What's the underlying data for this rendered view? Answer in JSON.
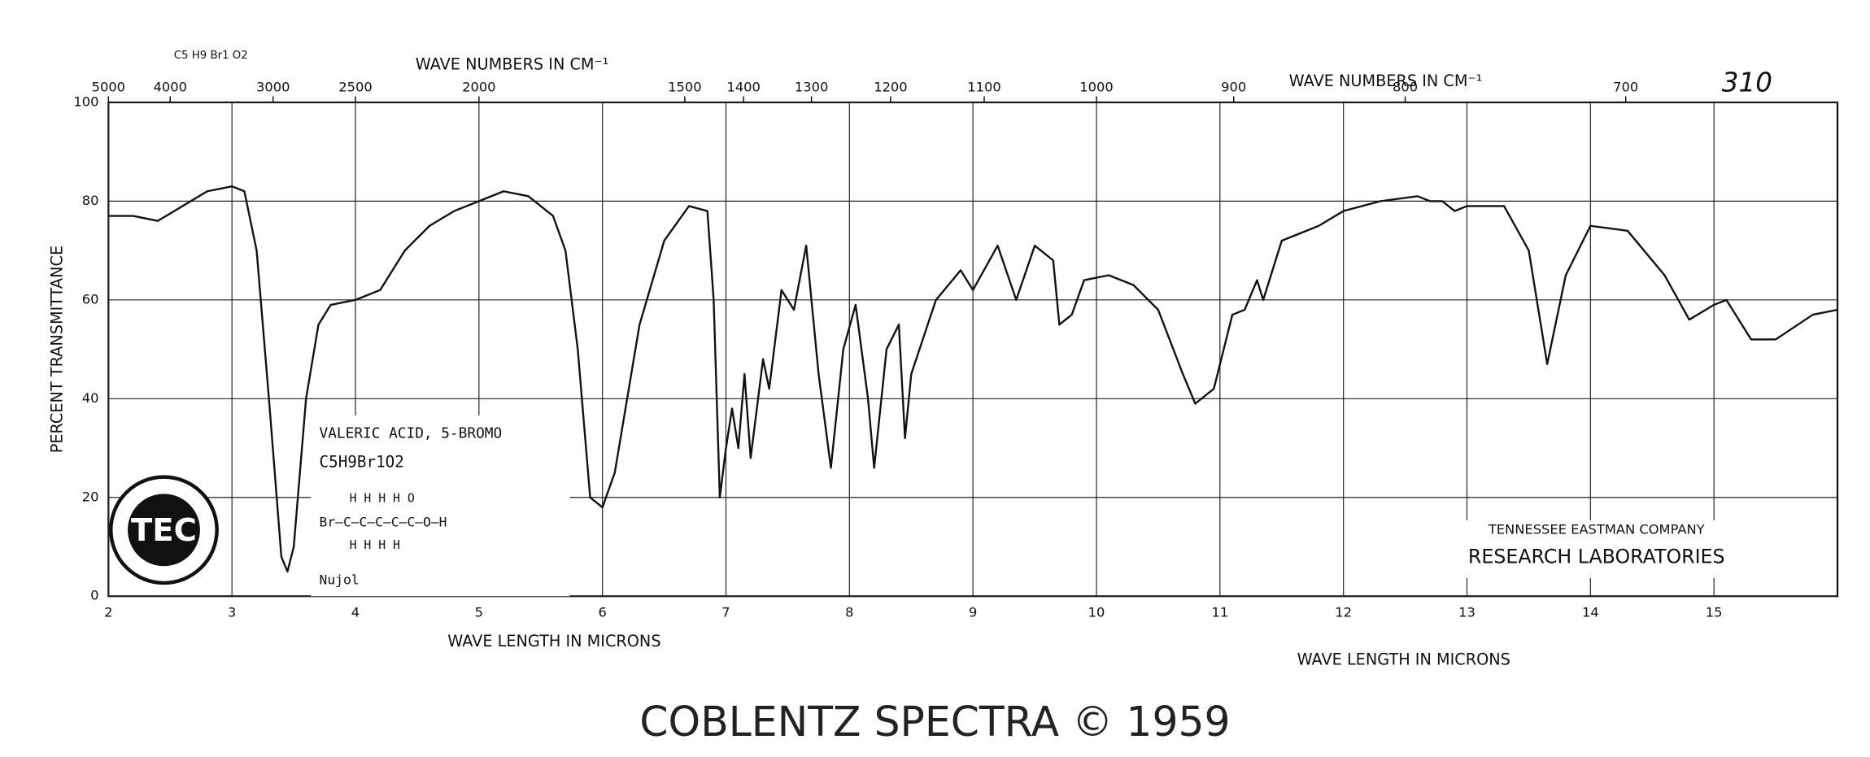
{
  "chart_data": {
    "type": "line",
    "sheet_number": "310",
    "top_formula": "C5 H9 Br1 O2",
    "top_axis_label_left": "WAVE NUMBERS IN CM⁻¹",
    "top_axis_label_right": "WAVE NUMBERS IN CM⁻¹",
    "x_label_left": "WAVE LENGTH IN MICRONS",
    "x_label_right": "WAVE LENGTH IN MICRONS",
    "y_label": "PERCENT TRANSMITTANCE",
    "compound": {
      "name": "VALERIC ACID, 5-BROMO",
      "formula": "C5H9Br1O2",
      "structure": [
        "H   H   H   H   O",
        "Br—C—C—C—C—C—O—H",
        "H   H   H   H"
      ],
      "medium": "Nujol"
    },
    "company": "TENNESSEE EASTMAN COMPANY",
    "lab": "RESEARCH LABORATORIES",
    "logo": "TEC",
    "footer": "COBLENTZ SPECTRA © 1959",
    "color": "#111111",
    "grid": true,
    "xlim": [
      2,
      16
    ],
    "ylim": [
      0,
      100
    ],
    "xticks": [
      2,
      3,
      4,
      5,
      6,
      7,
      8,
      9,
      10,
      11,
      12,
      13,
      14,
      15
    ],
    "yticks": [
      0,
      20,
      40,
      60,
      80,
      100
    ],
    "x2ticks": [
      5000,
      4000,
      3000,
      2500,
      2000,
      1500,
      1400,
      1300,
      1200,
      1100,
      1000,
      900,
      800,
      700
    ],
    "x": [
      2.0,
      2.2,
      2.4,
      2.6,
      2.8,
      3.0,
      3.1,
      3.2,
      3.3,
      3.4,
      3.45,
      3.5,
      3.6,
      3.7,
      3.8,
      4.0,
      4.2,
      4.4,
      4.6,
      4.8,
      5.0,
      5.2,
      5.4,
      5.6,
      5.7,
      5.8,
      5.9,
      6.0,
      6.1,
      6.3,
      6.5,
      6.7,
      6.85,
      6.9,
      6.95,
      7.0,
      7.05,
      7.1,
      7.15,
      7.2,
      7.3,
      7.35,
      7.45,
      7.55,
      7.65,
      7.75,
      7.85,
      7.95,
      8.05,
      8.15,
      8.2,
      8.3,
      8.4,
      8.45,
      8.5,
      8.7,
      8.9,
      9.0,
      9.2,
      9.35,
      9.5,
      9.65,
      9.7,
      9.8,
      9.9,
      10.1,
      10.3,
      10.5,
      10.7,
      10.8,
      10.95,
      11.1,
      11.2,
      11.3,
      11.35,
      11.5,
      11.8,
      12.0,
      12.3,
      12.6,
      12.7,
      12.8,
      12.9,
      13.0,
      13.3,
      13.5,
      13.65,
      13.8,
      14.0,
      14.3,
      14.6,
      14.8,
      15.0,
      15.1,
      15.3,
      15.5,
      15.8,
      16.0
    ],
    "values": [
      77,
      77,
      76,
      79,
      82,
      83,
      82,
      70,
      40,
      8,
      5,
      10,
      40,
      55,
      59,
      60,
      62,
      70,
      75,
      78,
      80,
      82,
      81,
      77,
      70,
      50,
      20,
      18,
      25,
      55,
      72,
      79,
      78,
      60,
      20,
      30,
      38,
      30,
      45,
      28,
      48,
      42,
      62,
      58,
      71,
      45,
      26,
      50,
      59,
      40,
      26,
      50,
      55,
      32,
      45,
      60,
      66,
      62,
      71,
      60,
      71,
      68,
      55,
      57,
      64,
      65,
      63,
      58,
      45,
      39,
      42,
      57,
      58,
      64,
      60,
      72,
      75,
      78,
      80,
      81,
      80,
      80,
      78,
      79,
      79,
      70,
      47,
      65,
      75,
      74,
      65,
      56,
      59,
      60,
      52,
      52,
      57,
      58
    ]
  }
}
